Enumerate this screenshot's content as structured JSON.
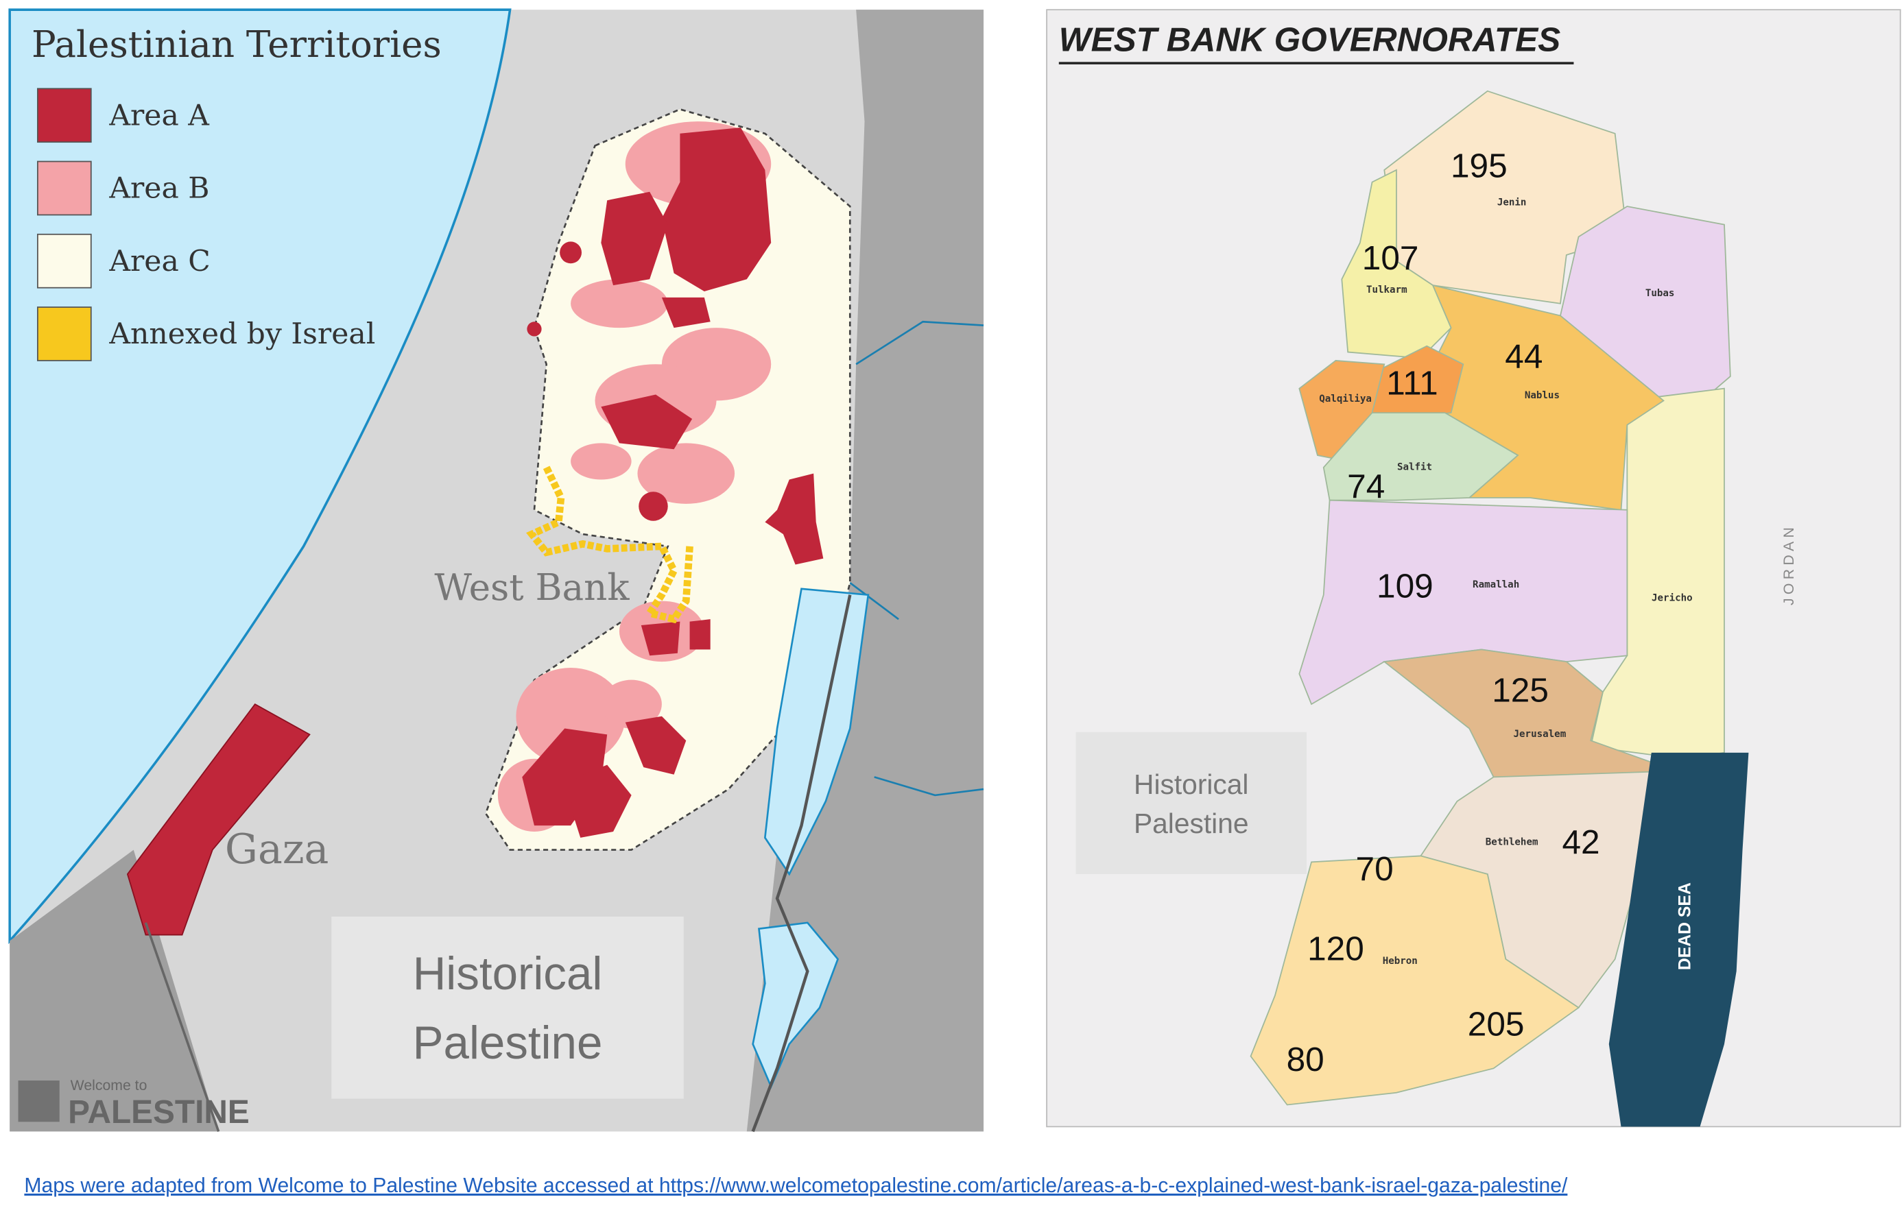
{
  "left_map": {
    "title": "Palestinian Territories",
    "legend": [
      {
        "label": "Area A",
        "color": "#c0263a"
      },
      {
        "label": "Area B",
        "color": "#f4a3a8"
      },
      {
        "label": "Area C",
        "color": "#fdfbea"
      },
      {
        "label": "Annexed by Isreal",
        "color": "#f7c81e"
      }
    ],
    "west_bank": "West Bank",
    "gaza": "Gaza",
    "historical_palestine": [
      "Historical",
      "Palestine"
    ],
    "logo": {
      "small": "Welcome to",
      "large": "PALESTINE"
    }
  },
  "right_map": {
    "title": "WEST BANK GOVERNORATES",
    "governorates": [
      "Jenin",
      "Tulkarm",
      "Tubas",
      "Qalqiliya",
      "Nablus",
      "Salfit",
      "Ramallah",
      "Jericho",
      "Jerusalem",
      "Bethlehem",
      "Hebron"
    ],
    "numbers": [
      195,
      107,
      111,
      44,
      74,
      109,
      125,
      42,
      70,
      120,
      205,
      80
    ],
    "jordan": "JORDAN",
    "dead_sea": "DEAD SEA",
    "historical_palestine": [
      "Historical",
      "Palestine"
    ]
  },
  "footer": {
    "source": "Maps were adapted from Welcome to Palestine Website accessed at https://www.welcometopalestine.com/article/areas-a-b-c-explained-west-bank-israel-gaza-palestine/"
  }
}
